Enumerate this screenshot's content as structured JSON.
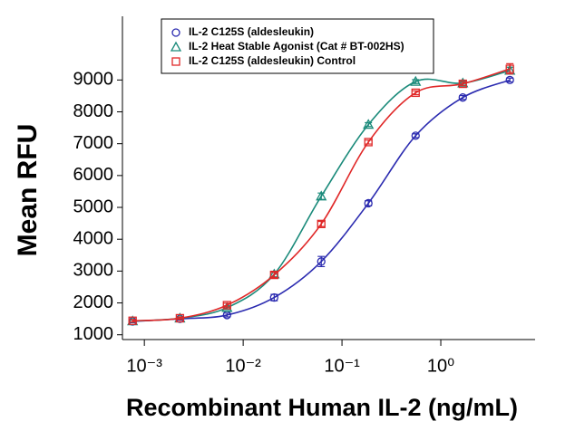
{
  "chart_data": {
    "type": "scatter",
    "xlabel": "Recombinant Human IL-2 (ng/mL)",
    "ylabel": "Mean RFU",
    "x": [
      0.00076,
      0.00229,
      0.00686,
      0.0206,
      0.0617,
      0.185,
      0.556,
      1.67,
      5
    ],
    "series": [
      {
        "name": "IL-2 C125S (aldesleukin)",
        "color": "#2b2bb0",
        "marker": "circle",
        "values": [
          1420,
          1500,
          1620,
          2170,
          3300,
          5130,
          7250,
          8450,
          9000
        ],
        "errors": [
          40,
          40,
          60,
          100,
          160,
          80,
          60,
          60,
          60
        ]
      },
      {
        "name": "IL-2 Heat Stable Agonist (Cat # BT-002HS)",
        "color": "#1a8a7a",
        "marker": "triangle",
        "values": [
          1430,
          1520,
          1850,
          2900,
          5350,
          7600,
          8950,
          8900,
          9300
        ],
        "errors": [
          40,
          40,
          60,
          80,
          100,
          60,
          60,
          60,
          100
        ]
      },
      {
        "name": "IL-2 C125S (aldesleukin) Control",
        "color": "#e02828",
        "marker": "square",
        "values": [
          1440,
          1520,
          1930,
          2880,
          4480,
          7050,
          8600,
          8880,
          9350
        ],
        "errors": [
          40,
          40,
          60,
          80,
          80,
          60,
          60,
          60,
          160
        ]
      }
    ],
    "xscale": "log",
    "xlim": [
      0.0006,
      9
    ],
    "xticks": [
      {
        "value": 0.001,
        "label": "10⁻³"
      },
      {
        "value": 0.01,
        "label": "10⁻²"
      },
      {
        "value": 0.1,
        "label": "10⁻¹"
      },
      {
        "value": 1,
        "label": "10⁰"
      }
    ],
    "ylim": [
      850,
      11000
    ],
    "yticks": [
      1000,
      2000,
      3000,
      4000,
      5000,
      6000,
      7000,
      8000,
      9000
    ],
    "legend": "top"
  }
}
